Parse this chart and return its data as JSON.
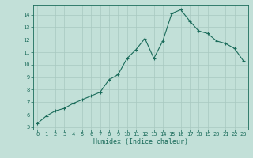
{
  "x": [
    0,
    1,
    2,
    3,
    4,
    5,
    6,
    7,
    8,
    9,
    10,
    11,
    12,
    13,
    14,
    15,
    16,
    17,
    18,
    19,
    20,
    21,
    22,
    23
  ],
  "y": [
    5.3,
    5.9,
    6.3,
    6.5,
    6.9,
    7.2,
    7.5,
    7.8,
    8.8,
    9.2,
    10.5,
    11.2,
    12.1,
    10.5,
    11.9,
    14.1,
    14.4,
    13.5,
    12.7,
    12.5,
    11.9,
    11.7,
    11.3,
    10.3
  ],
  "xlabel": "Humidex (Indice chaleur)",
  "xlim": [
    -0.5,
    23.5
  ],
  "ylim": [
    4.8,
    14.8
  ],
  "yticks": [
    5,
    6,
    7,
    8,
    9,
    10,
    11,
    12,
    13,
    14
  ],
  "xticks": [
    0,
    1,
    2,
    3,
    4,
    5,
    6,
    7,
    8,
    9,
    10,
    11,
    12,
    13,
    14,
    15,
    16,
    17,
    18,
    19,
    20,
    21,
    22,
    23
  ],
  "line_color": "#1a6b5a",
  "marker_color": "#1a6b5a",
  "bg_color": "#c2e0d8",
  "grid_color": "#a8c8c0",
  "axis_color": "#1a6b5a",
  "font_color": "#1a6b5a"
}
